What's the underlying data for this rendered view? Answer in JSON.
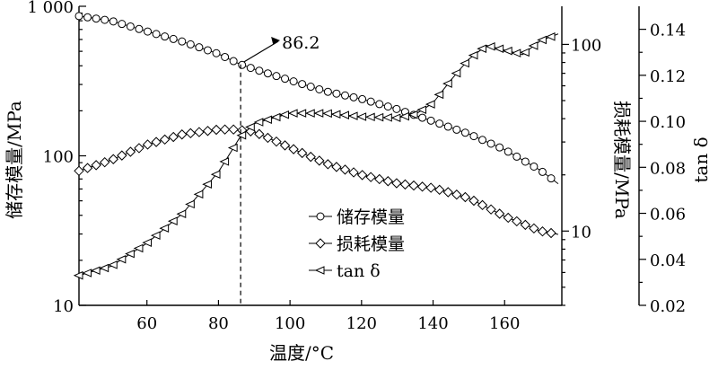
{
  "chart_data": {
    "type": "line",
    "xlabel": "温度/°C",
    "x_ticks": [
      60,
      80,
      100,
      120,
      140,
      160
    ],
    "xlim": [
      41,
      176
    ],
    "axes": {
      "left": {
        "label": "储存模量/MPa",
        "scale": "log",
        "ylim": [
          10,
          1000
        ],
        "ticks": [
          {
            "value": 10,
            "label": "10"
          },
          {
            "value": 100,
            "label": "100"
          },
          {
            "value": 1000,
            "label": "1 000"
          }
        ]
      },
      "middle": {
        "label": "损耗模量/MPa",
        "scale": "log",
        "ylim": [
          4,
          160
        ],
        "ticks": [
          {
            "value": 10,
            "label": "10"
          },
          {
            "value": 100,
            "label": "100"
          }
        ]
      },
      "right": {
        "label": "tan δ",
        "scale": "linear",
        "ylim": [
          0.02,
          0.15
        ],
        "ticks": [
          {
            "value": 0.02,
            "label": "0.02"
          },
          {
            "value": 0.04,
            "label": "0.04"
          },
          {
            "value": 0.06,
            "label": "0.06"
          },
          {
            "value": 0.08,
            "label": "0.08"
          },
          {
            "value": 0.1,
            "label": "0.10"
          },
          {
            "value": 0.12,
            "label": "0.12"
          },
          {
            "value": 0.14,
            "label": "0.14"
          }
        ]
      }
    },
    "annotation": {
      "text": "86.2",
      "x": 86.2
    },
    "legend_position": "center-left",
    "series": [
      {
        "name": "储存模量",
        "axis": "left",
        "marker": "circle",
        "x": [
          41,
          50,
          60,
          70,
          80,
          86,
          90,
          100,
          110,
          120,
          130,
          140,
          150,
          160,
          170,
          175
        ],
        "y": [
          860,
          800,
          680,
          580,
          480,
          410,
          380,
          320,
          270,
          240,
          205,
          170,
          140,
          110,
          80,
          65
        ]
      },
      {
        "name": "损耗模量",
        "axis": "middle",
        "marker": "diamond",
        "x": [
          41,
          50,
          60,
          70,
          80,
          85,
          90,
          100,
          110,
          120,
          130,
          140,
          145,
          150,
          160,
          170,
          175
        ],
        "y": [
          21,
          24,
          29,
          33,
          35,
          35,
          34,
          28,
          23,
          20,
          18,
          17,
          16,
          15,
          12,
          10,
          9.6
        ]
      },
      {
        "name": "tan δ",
        "axis": "right",
        "marker": "triangle-left",
        "x": [
          41,
          50,
          60,
          70,
          80,
          86,
          90,
          100,
          110,
          120,
          130,
          135,
          140,
          145,
          150,
          155,
          160,
          165,
          170,
          175
        ],
        "y": [
          0.033,
          0.037,
          0.047,
          0.06,
          0.078,
          0.093,
          0.099,
          0.1035,
          0.1035,
          0.102,
          0.1015,
          0.103,
          0.108,
          0.118,
          0.127,
          0.133,
          0.131,
          0.129,
          0.135,
          0.138
        ]
      }
    ]
  }
}
